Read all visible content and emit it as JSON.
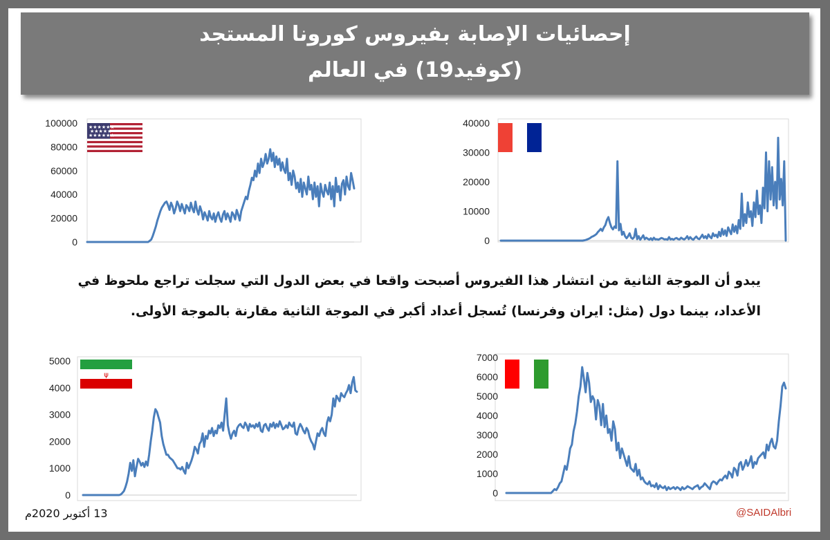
{
  "header": {
    "title_line1": "إحصائيات الإصابة بفيروس كورونا المستجد",
    "title_line2": "(كوفيد19) في العالم"
  },
  "note": {
    "line1": "يبدو أن الموجة الثانية من انتشار هذا الفيروس أصبحت واقعا في بعض الدول التي سجلت تراجع ملحوظ في",
    "line2": "الأعداد، بينما دول (مثل: ايران وفرنسا) تُسجل أعداد أكبر في الموجة الثانية مقارنة بالموجة الأولى."
  },
  "footer": {
    "date": "13 أكتوبر 2020م",
    "handle": "@SAIDAlbri"
  },
  "colors": {
    "series": "#4a7ebb",
    "banner": "#7a7a7a",
    "border": "#6e6e6e"
  },
  "chart_data": [
    {
      "type": "line",
      "country_flag": "usa-flag",
      "title": "",
      "xlabel": "",
      "ylabel": "",
      "ylim": [
        0,
        100000
      ],
      "yticks": [
        "100000",
        "80000",
        "60000",
        "40000",
        "20000",
        "0"
      ],
      "grid": false,
      "values": [
        0,
        0,
        0,
        0,
        0,
        0,
        0,
        0,
        0,
        0,
        0,
        0,
        0,
        0,
        0,
        0,
        0,
        0,
        0,
        0,
        0,
        0,
        0,
        0,
        0,
        0,
        0,
        0,
        0,
        0,
        0,
        0,
        0,
        0,
        0,
        0,
        0,
        0,
        0,
        0,
        0,
        1000,
        2000,
        5000,
        9000,
        13000,
        18000,
        22000,
        26000,
        29000,
        31000,
        33000,
        34000,
        31000,
        27000,
        33000,
        30000,
        24000,
        28000,
        34000,
        31000,
        26000,
        32000,
        28000,
        24000,
        31000,
        29000,
        26000,
        33000,
        28000,
        25000,
        34000,
        27000,
        23000,
        30000,
        26000,
        19000,
        25000,
        22000,
        18000,
        26000,
        21000,
        19000,
        24000,
        17000,
        22000,
        25000,
        20000,
        17000,
        23000,
        26000,
        19000,
        24000,
        21000,
        17000,
        25000,
        23000,
        19000,
        27000,
        23000,
        18000,
        26000,
        30000,
        34000,
        38000,
        36000,
        43000,
        48000,
        54000,
        52000,
        60000,
        55000,
        66000,
        58000,
        70000,
        63000,
        67000,
        74000,
        66000,
        70000,
        78000,
        68000,
        75000,
        63000,
        72000,
        65000,
        70000,
        60000,
        67000,
        61000,
        58000,
        70000,
        52000,
        58000,
        48000,
        60000,
        55000,
        45000,
        50000,
        42000,
        53000,
        38000,
        50000,
        45000,
        40000,
        55000,
        44000,
        48000,
        36000,
        50000,
        38000,
        47000,
        30000,
        49000,
        42000,
        38000,
        48000,
        43000,
        40000,
        50000,
        36000,
        47000,
        30000,
        54000,
        42000,
        47000,
        35000,
        49000,
        52000,
        40000,
        55000,
        47000,
        44000,
        58000,
        52000,
        45000
      ]
    },
    {
      "type": "line",
      "country_flag": "france-flag",
      "title": "",
      "xlabel": "",
      "ylabel": "",
      "ylim": [
        0,
        40000
      ],
      "yticks": [
        "40000",
        "30000",
        "20000",
        "10000",
        "0"
      ],
      "grid": false,
      "values": [
        0,
        0,
        0,
        0,
        0,
        0,
        0,
        0,
        0,
        0,
        0,
        0,
        0,
        0,
        0,
        0,
        0,
        0,
        0,
        0,
        0,
        0,
        0,
        0,
        0,
        0,
        0,
        0,
        0,
        0,
        0,
        0,
        0,
        0,
        0,
        0,
        0,
        0,
        0,
        0,
        0,
        0,
        0,
        0,
        0,
        0,
        0,
        0,
        0,
        0,
        0,
        0,
        0,
        0,
        0,
        100,
        200,
        400,
        600,
        900,
        1300,
        1500,
        1800,
        2200,
        2900,
        3400,
        4000,
        3300,
        4500,
        5300,
        7000,
        8000,
        6000,
        4500,
        3800,
        4800,
        4300,
        27000,
        3500,
        5700,
        2000,
        3000,
        1500,
        800,
        1500,
        2500,
        1000,
        600,
        1200,
        4000,
        500,
        1500,
        300,
        1000,
        1800,
        500,
        1000,
        600,
        300,
        800,
        200,
        1000,
        400,
        500,
        300,
        600,
        900,
        700,
        400,
        500,
        300,
        1200,
        400,
        600,
        300,
        700,
        900,
        500,
        400,
        1000,
        600,
        400,
        800,
        1500,
        500,
        1200,
        600,
        300,
        900,
        1400,
        700,
        500,
        1200,
        2000,
        900,
        1500,
        700,
        2100,
        1300,
        800,
        2500,
        1500,
        2000,
        1100,
        3000,
        1500,
        4000,
        2000,
        3500,
        1600,
        4500,
        3300,
        2200,
        5500,
        3000,
        5000,
        2500,
        7000,
        4000,
        16000,
        5000,
        9000,
        6000,
        13000,
        8000,
        10000,
        5000,
        13000,
        8000,
        17000,
        9000,
        12000,
        6000,
        18000,
        11000,
        30000,
        10000,
        27000,
        14000,
        25000,
        12000,
        20000,
        11000,
        35000,
        14000,
        21000,
        12000,
        27000,
        0
      ]
    },
    {
      "type": "line",
      "country_flag": "iran-flag",
      "title": "",
      "xlabel": "",
      "ylabel": "",
      "ylim": [
        0,
        5000
      ],
      "yticks": [
        "5000",
        "4000",
        "3000",
        "2000",
        "1000",
        "0"
      ],
      "grid": false,
      "values": [
        0,
        0,
        0,
        0,
        0,
        0,
        0,
        0,
        0,
        0,
        0,
        0,
        0,
        0,
        0,
        0,
        0,
        0,
        0,
        0,
        0,
        0,
        0,
        0,
        20,
        80,
        150,
        300,
        500,
        800,
        1200,
        900,
        1300,
        700,
        1050,
        1350,
        1250,
        1100,
        1200,
        1050,
        1250,
        1100,
        1500,
        2000,
        2400,
        2900,
        3200,
        3100,
        2900,
        2700,
        2200,
        1900,
        1700,
        1500,
        1500,
        1400,
        1350,
        1300,
        1200,
        1100,
        1000,
        1000,
        950,
        1050,
        900,
        800,
        1200,
        1000,
        1150,
        1300,
        1500,
        1800,
        1700,
        1550,
        1900,
        2000,
        2300,
        1800,
        2200,
        2100,
        2400,
        2300,
        2500,
        2200,
        2400,
        2300,
        2600,
        2500,
        2700,
        2400,
        3000,
        3600,
        2600,
        2300,
        2100,
        2300,
        2400,
        2200,
        2500,
        2600,
        2650,
        2550,
        2500,
        2700,
        2600,
        2400,
        2650,
        2550,
        2600,
        2500,
        2650,
        2550,
        2700,
        2400,
        2350,
        2600,
        2650,
        2500,
        2400,
        2650,
        2550,
        2700,
        2500,
        2650,
        2550,
        2750,
        2600,
        2450,
        2500,
        2600,
        2500,
        2700,
        2600,
        2550,
        2700,
        2300,
        2250,
        2500,
        2650,
        2550,
        2400,
        2300,
        2500,
        2400,
        2150,
        2000,
        1900,
        1700,
        2000,
        2300,
        2200,
        2400,
        2500,
        2300,
        2200,
        2700,
        2900,
        2750,
        3000,
        3600,
        3300,
        3700,
        3600,
        3500,
        3800,
        3700,
        3650,
        3800,
        3900,
        4100,
        3800,
        4200,
        4400,
        3900,
        3850
      ]
    },
    {
      "type": "line",
      "country_flag": "italy-flag",
      "title": "",
      "xlabel": "",
      "ylabel": "",
      "ylim": [
        0,
        7000
      ],
      "yticks": [
        "7000",
        "6000",
        "5000",
        "4000",
        "3000",
        "2000",
        "1000",
        "0"
      ],
      "grid": false,
      "values": [
        0,
        0,
        0,
        0,
        0,
        0,
        0,
        0,
        0,
        0,
        0,
        0,
        0,
        0,
        0,
        0,
        0,
        0,
        0,
        0,
        0,
        0,
        0,
        0,
        0,
        0,
        0,
        100,
        200,
        150,
        300,
        500,
        600,
        1000,
        1400,
        1200,
        1700,
        2300,
        2500,
        3200,
        3600,
        4200,
        5000,
        5500,
        6500,
        5900,
        5200,
        6200,
        5700,
        4700,
        5000,
        4800,
        3800,
        4800,
        4500,
        3500,
        4600,
        3400,
        4000,
        3100,
        3300,
        2700,
        3700,
        3300,
        2200,
        2600,
        1800,
        2300,
        2000,
        1700,
        1400,
        1900,
        1300,
        1200,
        1100,
        1500,
        900,
        1200,
        700,
        800,
        600,
        500,
        450,
        600,
        350,
        400,
        300,
        500,
        200,
        400,
        300,
        250,
        350,
        150,
        300,
        200,
        250,
        300,
        200,
        300,
        250,
        150,
        300,
        200,
        250,
        350,
        300,
        250,
        200,
        300,
        350,
        400,
        200,
        300,
        350,
        500,
        400,
        300,
        200,
        500,
        600,
        550,
        450,
        600,
        700,
        650,
        800,
        900,
        750,
        1100,
        1000,
        800,
        1300,
        1200,
        900,
        1500,
        1600,
        1200,
        1400,
        1700,
        1400,
        1600,
        1900,
        1300,
        1600,
        1500,
        1800,
        1900,
        2000,
        2100,
        1800,
        2500,
        2200,
        2600,
        2800,
        2400,
        2300,
        2700,
        3700,
        4500,
        5500,
        5700,
        5400
      ]
    }
  ]
}
